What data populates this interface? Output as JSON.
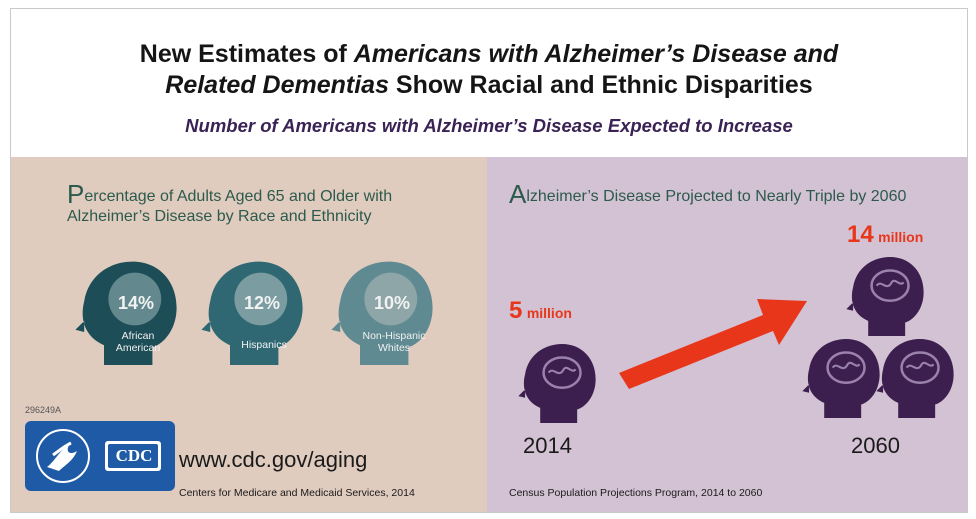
{
  "header": {
    "title_line1_a": "New Estimates of ",
    "title_line1_b": "Americans with Alzheimer’s Disease and",
    "title_line2_a": "Related Dementias",
    "title_line2_b": " Show Racial and Ethnic Disparities",
    "subtitle": "Number of Americans with Alzheimer’s Disease Expected to Increase"
  },
  "left_panel": {
    "heading_cap": "P",
    "heading_line1": "ercentage of Adults Aged 65 and Older with",
    "heading_line2": "Alzheimer’s Disease by Race and Ethnicity",
    "groups": [
      {
        "pct": "14%",
        "label_1": "African",
        "label_2": "American",
        "color": "#1d4d56"
      },
      {
        "pct": "12%",
        "label_1": "Hispanics",
        "label_2": "",
        "color": "#2f6872"
      },
      {
        "pct": "10%",
        "label_1": "Non-Hispanic",
        "label_2": "Whites",
        "color": "#5f8a91"
      }
    ],
    "code": "296249A",
    "logo_text": "CDC",
    "url": "www.cdc.gov/aging",
    "source": "Centers for Medicare and Medicaid Services, 2014"
  },
  "right_panel": {
    "heading_cap": "A",
    "heading_rest": "lzheimer’s Disease Projected to Nearly Triple by 2060",
    "now_number": "5",
    "now_unit": "million",
    "now_year": "2014",
    "future_number": "14",
    "future_unit": "million",
    "future_year": "2060",
    "source": "Census Population Projections Program, 2014 to 2060"
  },
  "colors": {
    "accent_red": "#e8361b",
    "head_purple": "#3c1f4e",
    "brain_purple": "#6a4c80"
  }
}
